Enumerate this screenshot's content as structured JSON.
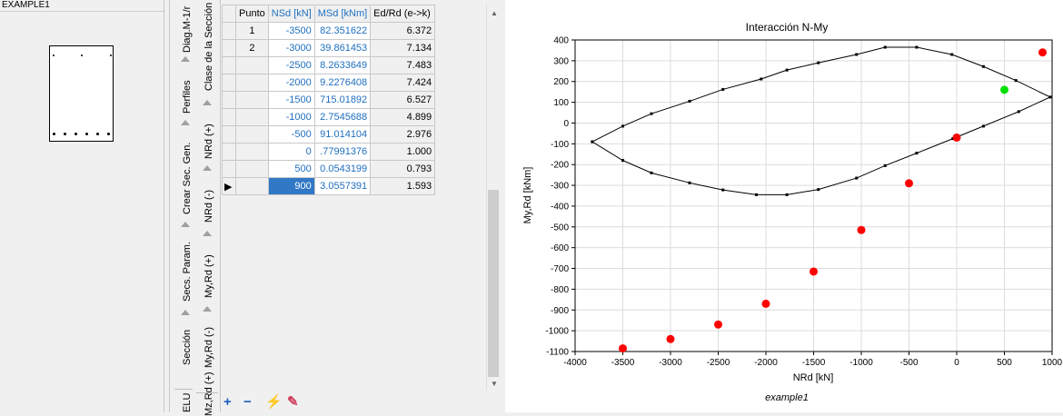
{
  "left": {
    "title": "EXAMPLE1"
  },
  "tabs": {
    "outer": [
      "Diag.M-1/r",
      "Perfiles",
      "Crear Sec. Gen.",
      "Secs. Param.",
      "Sección",
      "ELU"
    ],
    "inner": [
      "Clase de la Sección",
      "NRd (+)",
      "NRd (-)",
      "My,Rd (+)",
      "My,Rd (-)",
      "Mz,Rd (+)"
    ]
  },
  "table": {
    "headers": [
      "Punto",
      "NSd [kN]",
      "MSd [kNm]",
      "Ed/Rd (e->k)"
    ],
    "rows": [
      {
        "punto": "1",
        "nsd": "-3500",
        "msd": "82.351622",
        "ed": "6.372"
      },
      {
        "punto": "2",
        "nsd": "-3000",
        "msd": "39.861453",
        "ed": "7.134"
      },
      {
        "punto": "",
        "nsd": "-2500",
        "msd": "8.2633649",
        "ed": "7.483"
      },
      {
        "punto": "",
        "nsd": "-2000",
        "msd": "9.2276408",
        "ed": "7.424"
      },
      {
        "punto": "",
        "nsd": "-1500",
        "msd": "715.01892",
        "ed": "6.527"
      },
      {
        "punto": "",
        "nsd": "-1000",
        "msd": "2.7545688",
        "ed": "4.899"
      },
      {
        "punto": "",
        "nsd": "-500",
        "msd": "91.014104",
        "ed": "2.976"
      },
      {
        "punto": "",
        "nsd": "0",
        "msd": ".77991376",
        "ed": "1.000"
      },
      {
        "punto": "",
        "nsd": "500",
        "msd": "0.0543199",
        "ed": "0.793"
      },
      {
        "punto": "",
        "nsd": "900",
        "msd": "3.0557391",
        "ed": "1.593"
      }
    ]
  },
  "chart_data": {
    "type": "scatter",
    "title": "Interacción N-My",
    "xlabel": "NRd [kN]",
    "ylabel": "My,Rd [kNm]",
    "footer": "example1",
    "xlim": [
      -4000,
      1000
    ],
    "ylim": [
      -1100,
      400
    ],
    "xticks": [
      -4000,
      -3500,
      -3000,
      -2500,
      -2000,
      -1500,
      -1000,
      -500,
      0,
      500,
      1000
    ],
    "yticks": [
      400,
      300,
      200,
      100,
      0,
      -100,
      -200,
      -300,
      -400,
      -500,
      -600,
      -700,
      -800,
      -900,
      -1000,
      -1100
    ],
    "grid": true,
    "curve": [
      [
        -3820,
        -90
      ],
      [
        -3500,
        -15
      ],
      [
        -3200,
        45
      ],
      [
        -2800,
        105
      ],
      [
        -2450,
        162
      ],
      [
        -2050,
        212
      ],
      [
        -1780,
        255
      ],
      [
        -1450,
        290
      ],
      [
        -1050,
        330
      ],
      [
        -750,
        365
      ],
      [
        -420,
        365
      ],
      [
        -50,
        330
      ],
      [
        280,
        272
      ],
      [
        620,
        205
      ],
      [
        980,
        125
      ],
      [
        650,
        55
      ],
      [
        280,
        -15
      ],
      [
        -40,
        -75
      ],
      [
        -420,
        -145
      ],
      [
        -750,
        -205
      ],
      [
        -1050,
        -265
      ],
      [
        -1450,
        -320
      ],
      [
        -1780,
        -345
      ],
      [
        -2100,
        -345
      ],
      [
        -2450,
        -322
      ],
      [
        -2800,
        -288
      ],
      [
        -3200,
        -240
      ],
      [
        -3500,
        -180
      ],
      [
        -3820,
        -90
      ]
    ],
    "points_red": [
      [
        -3500,
        -1085
      ],
      [
        -3000,
        -1040
      ],
      [
        -2500,
        -970
      ],
      [
        -2000,
        -870
      ],
      [
        -1500,
        -715
      ],
      [
        -1000,
        -515
      ],
      [
        -500,
        -290
      ],
      [
        0,
        -70
      ],
      [
        900,
        340
      ]
    ],
    "points_green": [
      [
        500,
        160
      ]
    ],
    "colors": {
      "outside": "#ff0000",
      "inside": "#00e000",
      "curve": "#000000"
    }
  }
}
